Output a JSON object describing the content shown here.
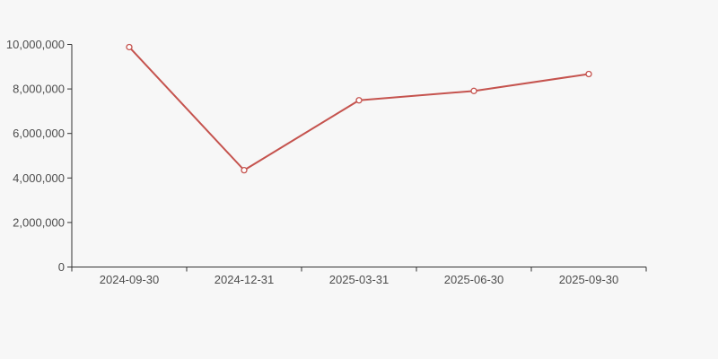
{
  "canvas": {
    "background": "#f7f7f7"
  },
  "chart_data": {
    "type": "line",
    "title": "",
    "xlabel": "",
    "ylabel": "",
    "categories": [
      "2024-09-30",
      "2024-12-31",
      "2025-03-31",
      "2025-06-30",
      "2025-09-30"
    ],
    "series": [
      {
        "name": "value",
        "color": "#c5534e",
        "marker": "open-circle",
        "marker_fill": "#ffffff",
        "values": [
          9880000,
          4350000,
          7490000,
          7910000,
          8670000
        ]
      }
    ],
    "ylim": [
      0,
      10000000
    ],
    "y_tick_interval": 2000000,
    "y_tick_labels": [
      "0",
      "2,000,000",
      "4,000,000",
      "6,000,000",
      "8,000,000",
      "10,000,000"
    ],
    "grid": false,
    "legend": false,
    "axis_color": "#333333",
    "label_color": "#4d4d4d"
  }
}
